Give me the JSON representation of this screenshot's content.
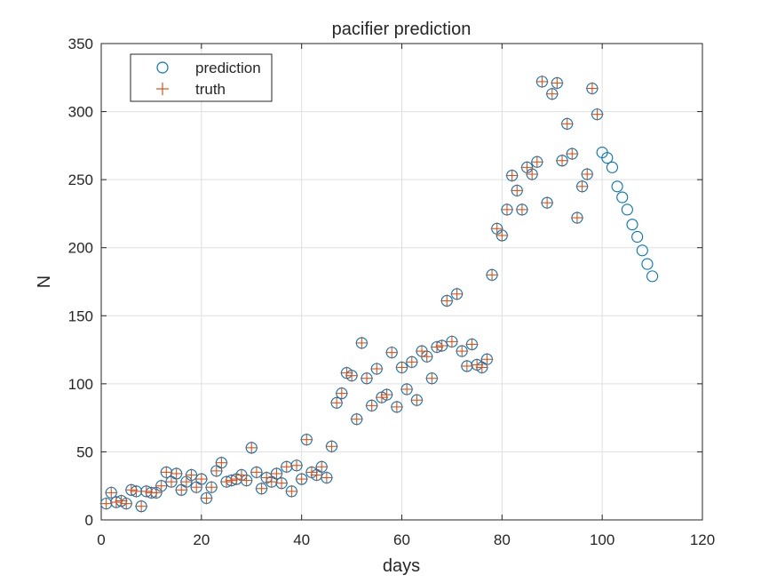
{
  "chart_data": {
    "type": "scatter",
    "title": "pacifier prediction",
    "xlabel": "days",
    "ylabel": "N",
    "xlim": [
      0,
      120
    ],
    "ylim": [
      0,
      350
    ],
    "xticks": [
      0,
      20,
      40,
      60,
      80,
      100,
      120
    ],
    "yticks": [
      0,
      50,
      100,
      150,
      200,
      250,
      300,
      350
    ],
    "grid": true,
    "legend_position": "top-left",
    "colors": {
      "prediction": "#0072bd",
      "truth": "#d95319",
      "axis": "#262626",
      "grid": "#dfdfdf"
    },
    "series": [
      {
        "name": "prediction",
        "marker": "circle",
        "x": [
          1,
          2,
          3,
          4,
          5,
          6,
          7,
          8,
          9,
          10,
          11,
          12,
          13,
          14,
          15,
          16,
          17,
          18,
          19,
          20,
          21,
          22,
          23,
          24,
          25,
          26,
          27,
          28,
          29,
          30,
          31,
          32,
          33,
          34,
          35,
          36,
          37,
          38,
          39,
          40,
          41,
          42,
          43,
          44,
          45,
          46,
          47,
          48,
          49,
          50,
          51,
          52,
          53,
          54,
          55,
          56,
          57,
          58,
          59,
          60,
          61,
          62,
          63,
          64,
          65,
          66,
          67,
          68,
          69,
          70,
          71,
          72,
          73,
          74,
          75,
          76,
          77,
          78,
          79,
          80,
          81,
          82,
          83,
          84,
          85,
          86,
          87,
          88,
          89,
          90,
          91,
          92,
          93,
          94,
          95,
          96,
          97,
          98,
          99,
          100,
          101,
          102,
          103,
          104,
          105,
          106,
          107,
          108,
          109,
          110
        ],
        "values": [
          12,
          20,
          13,
          14,
          12,
          22,
          21,
          10,
          21,
          20,
          20,
          25,
          35,
          28,
          34,
          22,
          28,
          33,
          24,
          30,
          16,
          24,
          36,
          42,
          28,
          29,
          30,
          33,
          29,
          53,
          35,
          23,
          31,
          28,
          34,
          27,
          39,
          21,
          40,
          30,
          59,
          35,
          33,
          39,
          31,
          54,
          86,
          93,
          108,
          106,
          74,
          130,
          104,
          84,
          111,
          90,
          92,
          123,
          83,
          112,
          96,
          116,
          88,
          124,
          120,
          104,
          127,
          128,
          161,
          131,
          166,
          124,
          113,
          129,
          114,
          112,
          118,
          180,
          214,
          209,
          228,
          253,
          242,
          228,
          259,
          254,
          263,
          322,
          233,
          313,
          321,
          264,
          291,
          269,
          222,
          245,
          254,
          317,
          298,
          270,
          266,
          259,
          245,
          237,
          228,
          217,
          208,
          198,
          188,
          179
        ]
      },
      {
        "name": "truth",
        "marker": "plus",
        "x": [
          1,
          2,
          3,
          4,
          5,
          6,
          7,
          8,
          9,
          10,
          11,
          12,
          13,
          14,
          15,
          16,
          17,
          18,
          19,
          20,
          21,
          22,
          23,
          24,
          25,
          26,
          27,
          28,
          29,
          30,
          31,
          32,
          33,
          34,
          35,
          36,
          37,
          38,
          39,
          40,
          41,
          42,
          43,
          44,
          45,
          46,
          47,
          48,
          49,
          50,
          51,
          52,
          53,
          54,
          55,
          56,
          57,
          58,
          59,
          60,
          61,
          62,
          63,
          64,
          65,
          66,
          67,
          68,
          69,
          70,
          71,
          72,
          73,
          74,
          75,
          76,
          77,
          78,
          79,
          80,
          81,
          82,
          83,
          84,
          85,
          86,
          87,
          88,
          89,
          90,
          91,
          92,
          93,
          94,
          95,
          96,
          97,
          98,
          99
        ],
        "values": [
          12,
          20,
          13,
          14,
          12,
          22,
          21,
          10,
          21,
          20,
          20,
          25,
          35,
          28,
          34,
          22,
          28,
          33,
          24,
          30,
          16,
          24,
          36,
          42,
          28,
          29,
          30,
          33,
          29,
          53,
          35,
          23,
          31,
          28,
          34,
          27,
          39,
          21,
          40,
          30,
          59,
          35,
          33,
          39,
          31,
          54,
          86,
          93,
          108,
          106,
          74,
          130,
          104,
          84,
          111,
          90,
          92,
          123,
          83,
          112,
          96,
          116,
          88,
          124,
          120,
          104,
          127,
          128,
          161,
          131,
          166,
          124,
          113,
          129,
          114,
          112,
          118,
          180,
          214,
          209,
          228,
          253,
          242,
          228,
          259,
          254,
          263,
          322,
          233,
          313,
          321,
          264,
          291,
          269,
          222,
          245,
          254,
          317,
          298
        ]
      }
    ]
  }
}
